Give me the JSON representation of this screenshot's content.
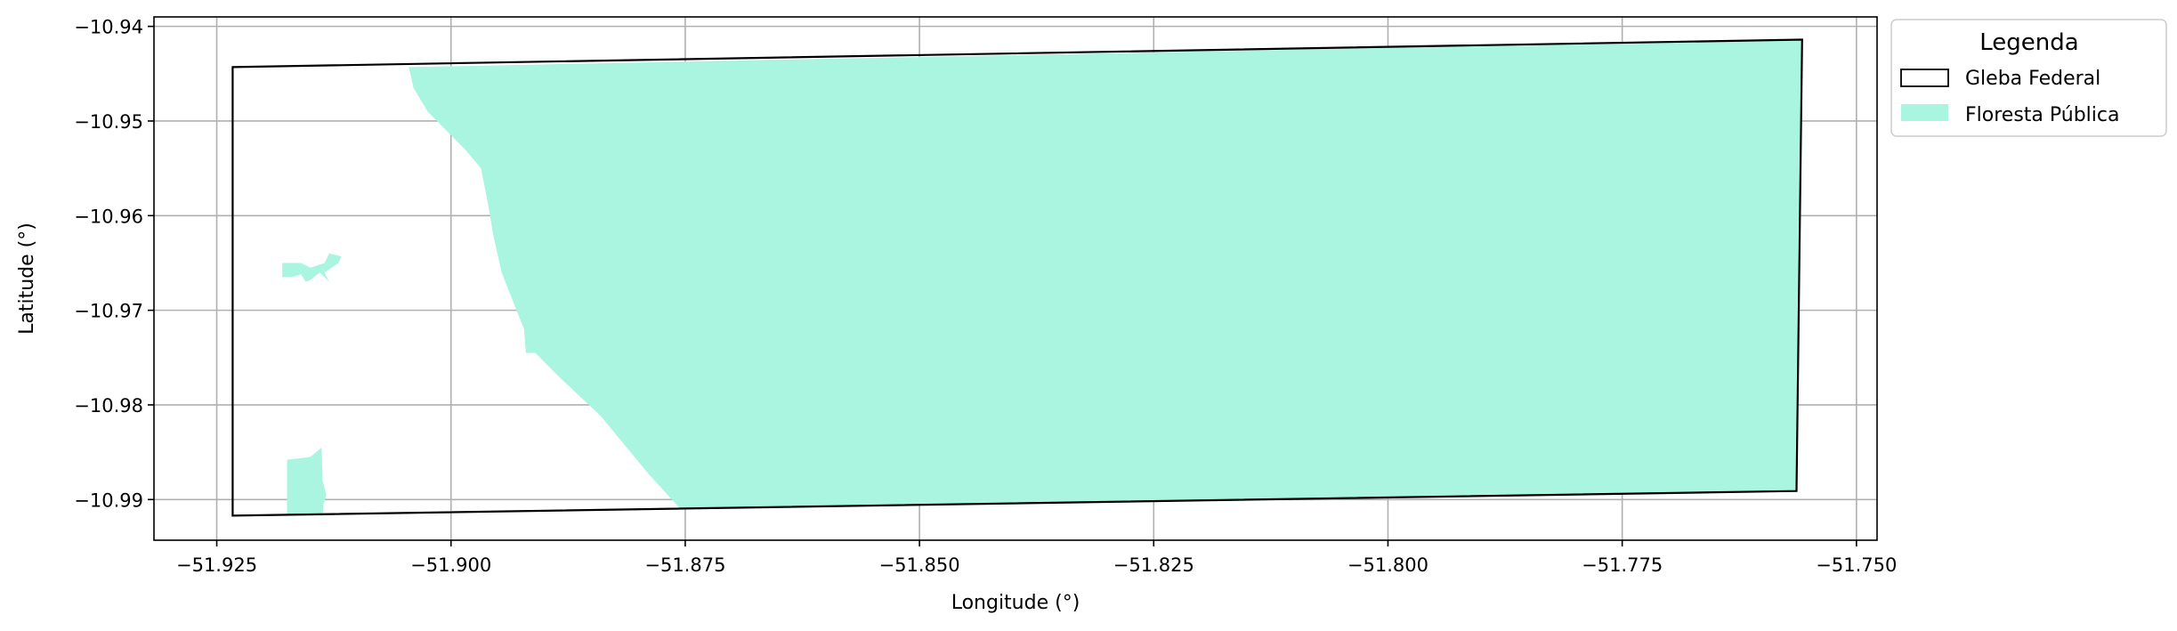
{
  "chart_data": {
    "type": "map",
    "xlabel": "Longitude (°)",
    "ylabel": "Latitude (°)",
    "xlim": [
      -51.9317,
      -51.7478
    ],
    "ylim": [
      -10.9943,
      -10.939
    ],
    "xticks": [
      -51.925,
      -51.9,
      -51.875,
      -51.85,
      -51.825,
      -51.8,
      -51.775,
      -51.75
    ],
    "xtick_labels": [
      "−51.925",
      "−51.900",
      "−51.875",
      "−51.850",
      "−51.825",
      "−51.800",
      "−51.775",
      "−51.750"
    ],
    "yticks": [
      -10.94,
      -10.95,
      -10.96,
      -10.97,
      -10.98,
      -10.99
    ],
    "ytick_labels": [
      "−10.94",
      "−10.95",
      "−10.96",
      "−10.97",
      "−10.98",
      "−10.99"
    ],
    "grid": true,
    "legend": {
      "title": "Legenda",
      "placement": "outside-top-right",
      "entries": [
        {
          "label": "Gleba Federal",
          "style": "outline",
          "color": "#000000"
        },
        {
          "label": "Floresta Pública",
          "style": "fill",
          "color": "#aaf5e0"
        }
      ]
    },
    "series": [
      {
        "name": "Gleba Federal",
        "kind": "polygon-outline",
        "color": "#000000",
        "coordinates": [
          [
            -51.9233,
            -10.9443
          ],
          [
            -51.7558,
            -10.9414
          ],
          [
            -51.7564,
            -10.9891
          ],
          [
            -51.9233,
            -10.9917
          ]
        ]
      },
      {
        "name": "Floresta Pública",
        "kind": "polygon-fill",
        "color": "#aaf5e0",
        "polygons": [
          [
            [
              -51.9045,
              -10.9443
            ],
            [
              -51.7558,
              -10.9414
            ],
            [
              -51.7564,
              -10.9891
            ],
            [
              -51.8755,
              -10.991
            ],
            [
              -51.879,
              -10.9872
            ],
            [
              -51.884,
              -10.9812
            ],
            [
              -51.887,
              -10.9784
            ],
            [
              -51.8885,
              -10.977
            ],
            [
              -51.891,
              -10.9745
            ],
            [
              -51.892,
              -10.9745
            ],
            [
              -51.8922,
              -10.972
            ],
            [
              -51.8934,
              -10.969
            ],
            [
              -51.8946,
              -10.966
            ],
            [
              -51.8955,
              -10.962
            ],
            [
              -51.896,
              -10.959
            ],
            [
              -51.8968,
              -10.955
            ],
            [
              -51.8985,
              -10.953
            ],
            [
              -51.9005,
              -10.951
            ],
            [
              -51.9025,
              -10.949
            ],
            [
              -51.904,
              -10.9465
            ]
          ],
          [
            [
              -51.918,
              -10.965
            ],
            [
              -51.916,
              -10.965
            ],
            [
              -51.915,
              -10.9655
            ],
            [
              -51.9135,
              -10.965
            ],
            [
              -51.913,
              -10.964
            ],
            [
              -51.9117,
              -10.9643
            ],
            [
              -51.912,
              -10.965
            ],
            [
              -51.9135,
              -10.966
            ],
            [
              -51.913,
              -10.967
            ],
            [
              -51.914,
              -10.966
            ],
            [
              -51.915,
              -10.9668
            ],
            [
              -51.9155,
              -10.967
            ],
            [
              -51.916,
              -10.9662
            ],
            [
              -51.917,
              -10.9665
            ],
            [
              -51.918,
              -10.9665
            ]
          ],
          [
            [
              -51.9175,
              -10.9858
            ],
            [
              -51.915,
              -10.9855
            ],
            [
              -51.9138,
              -10.9845
            ],
            [
              -51.9137,
              -10.988
            ],
            [
              -51.9133,
              -10.9895
            ],
            [
              -51.9136,
              -10.9905
            ],
            [
              -51.9137,
              -10.9917
            ],
            [
              -51.9175,
              -10.9917
            ]
          ]
        ]
      }
    ]
  }
}
